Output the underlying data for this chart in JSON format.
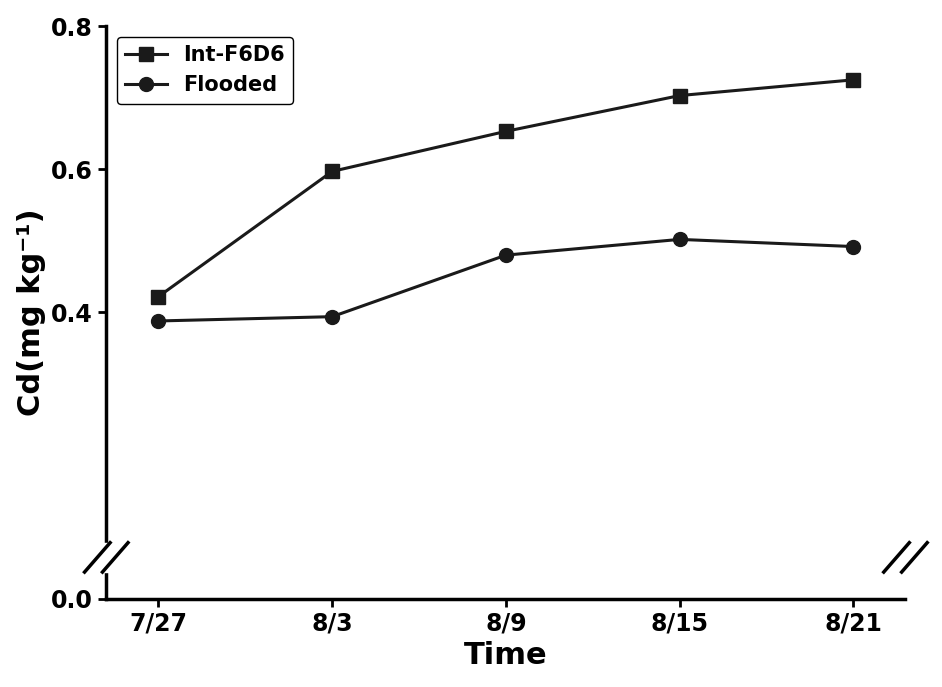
{
  "x_labels": [
    "7/27",
    "8/3",
    "8/9",
    "8/15",
    "8/21"
  ],
  "x_values": [
    0,
    1,
    2,
    3,
    4
  ],
  "series": [
    {
      "name": "Int-F6D6",
      "marker": "s",
      "values": [
        0.422,
        0.597,
        0.653,
        0.703,
        0.725
      ]
    },
    {
      "name": "Flooded",
      "marker": "o",
      "values": [
        0.388,
        0.394,
        0.48,
        0.502,
        0.492
      ]
    }
  ],
  "line_color": "#1a1a1a",
  "ylabel": "Cd(mg kg⁻¹)",
  "xlabel": "Time",
  "ylim": [
    0.0,
    0.8
  ],
  "yticks": [
    0.0,
    0.4,
    0.6,
    0.8
  ],
  "background_color": "#ffffff",
  "axis_label_fontsize": 22,
  "tick_fontsize": 17,
  "legend_fontsize": 15,
  "linewidth": 2.2,
  "markersize": 10,
  "spine_linewidth": 2.5
}
